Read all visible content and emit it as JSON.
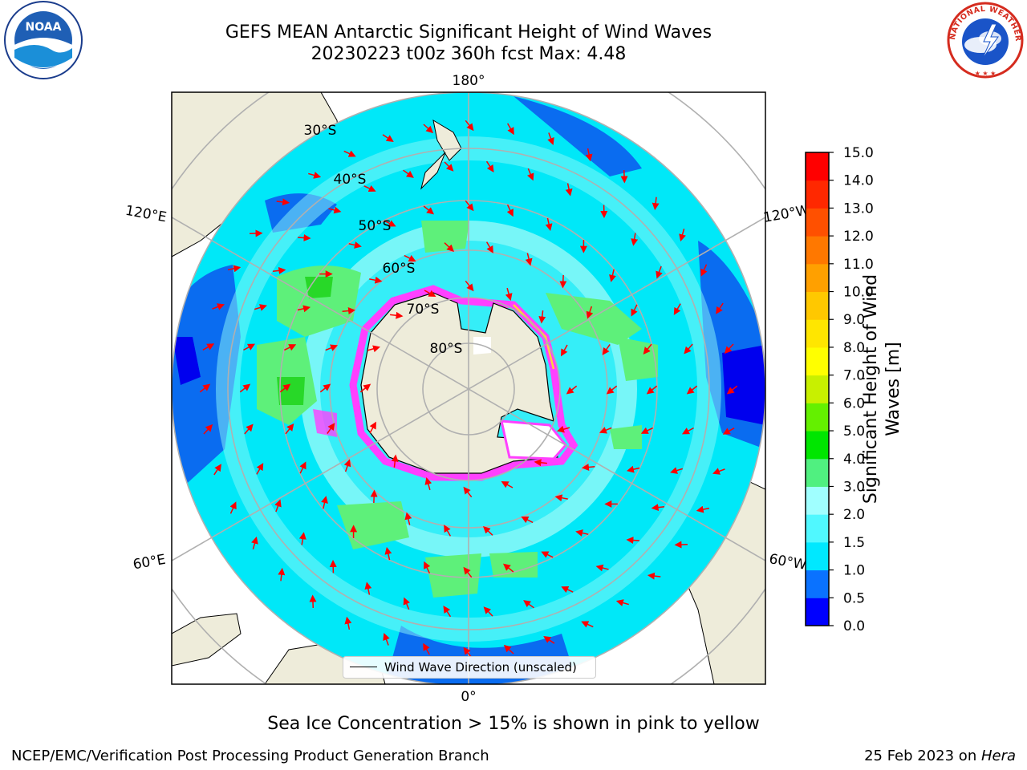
{
  "title": {
    "line1": "GEFS MEAN Antarctic Significant Height of Wind Waves",
    "line2": "20230223 t00z 360h fcst   Max: 4.48"
  },
  "logos": {
    "noaa": "NOAA",
    "nws": "NATIONAL WEATHER SERVICE"
  },
  "map": {
    "projection": "south-polar-stereographic",
    "longitude_labels": {
      "top": "180°",
      "upper_left": "120°E",
      "upper_right": "120°W",
      "lower_left": "60°E",
      "lower_right": "60°W",
      "bottom": "0°"
    },
    "latitude_labels": [
      "30°S",
      "40°S",
      "50°S",
      "60°S",
      "70°S",
      "80°S"
    ],
    "legend": "Wind Wave Direction (unscaled)",
    "colors": {
      "land": "#eeecda",
      "ocean_low": "#0a6cf0",
      "ocean_mid": "#00e8f8",
      "ocean_light": "#8cf8f8",
      "waves_green": "#5ef07a",
      "ice": "#ff40ff",
      "arrow": "#ff0000"
    }
  },
  "colorbar": {
    "title_line1": "Significant Height of Wind",
    "title_line2": "Waves [m]",
    "ticks": [
      "0.0",
      "0.5",
      "1.0",
      "1.5",
      "2.0",
      "3.0",
      "4.0",
      "5.0",
      "6.0",
      "7.0",
      "8.0",
      "9.0",
      "10.0",
      "11.0",
      "12.0",
      "13.0",
      "14.0",
      "15.0"
    ],
    "colors": [
      "#0000ff",
      "#0a72ff",
      "#00e8ff",
      "#50f8ff",
      "#a0ffff",
      "#50f080",
      "#00e600",
      "#64f000",
      "#c8f000",
      "#ffff00",
      "#ffe600",
      "#ffc800",
      "#ffa000",
      "#ff7800",
      "#ff5000",
      "#ff2800",
      "#ff0000"
    ]
  },
  "subtitle": "Sea Ice Concentration > 15% is shown in pink to yellow",
  "footer": {
    "left": "NCEP/EMC/Verification Post Processing Product Generation Branch",
    "right_prefix": "25 Feb 2023 on ",
    "right_machine": "Hera"
  }
}
